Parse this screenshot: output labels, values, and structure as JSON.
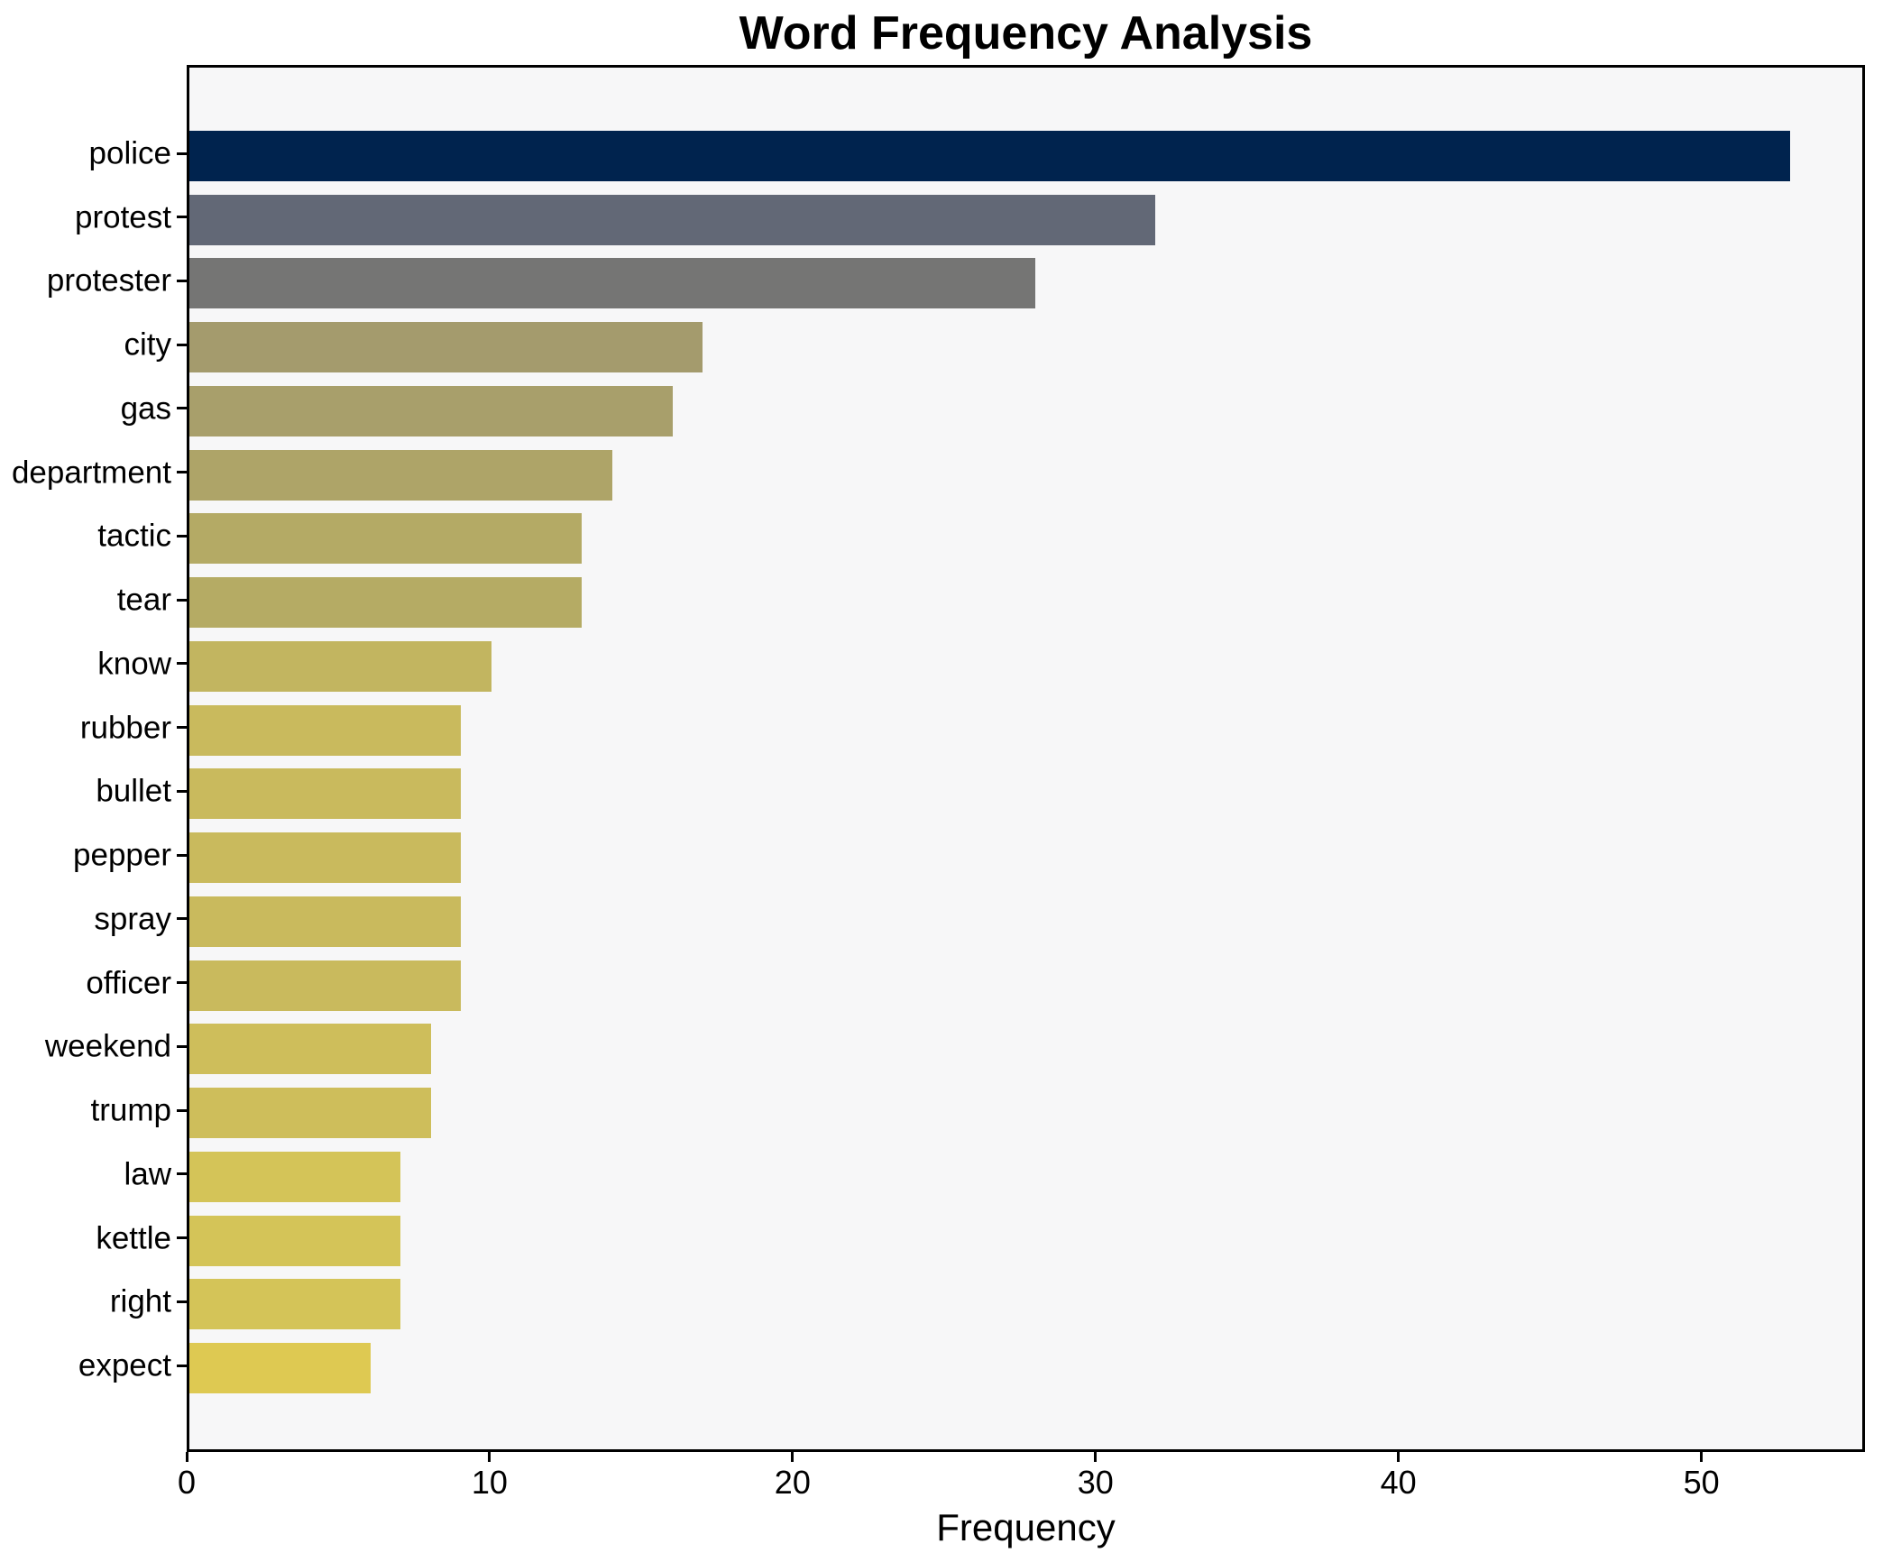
{
  "title": "Word Frequency Analysis",
  "chart_data": {
    "type": "bar",
    "orientation": "horizontal",
    "title": "Word Frequency Analysis",
    "xlabel": "Frequency",
    "ylabel": "",
    "xlim": [
      0,
      55.4
    ],
    "x_ticks": [
      0,
      10,
      20,
      30,
      40,
      50
    ],
    "grid": false,
    "legend": "none",
    "categories": [
      "police",
      "protest",
      "protester",
      "city",
      "gas",
      "department",
      "tactic",
      "tear",
      "know",
      "rubber",
      "bullet",
      "pepper",
      "spray",
      "officer",
      "weekend",
      "trump",
      "law",
      "kettle",
      "right",
      "expect"
    ],
    "values": [
      53,
      32,
      28,
      17,
      16,
      14,
      13,
      13,
      10,
      9,
      9,
      9,
      9,
      9,
      8,
      8,
      7,
      7,
      7,
      6
    ],
    "bar_colors": [
      "#00234e",
      "#626876",
      "#757574",
      "#a49b6d",
      "#a89f6b",
      "#aea468",
      "#b4aa65",
      "#b5ab64",
      "#c2b560",
      "#c9ba5d",
      "#c9ba5d",
      "#c9ba5d",
      "#c9ba5d",
      "#c9ba5d",
      "#cebe5b",
      "#cebe5b",
      "#d4c458",
      "#d4c458",
      "#d4c458",
      "#dec952"
    ],
    "plot_background": "#f7f7f8",
    "page_background": "#ffffff",
    "spine_color": "#000000",
    "text_color": "#000000"
  }
}
